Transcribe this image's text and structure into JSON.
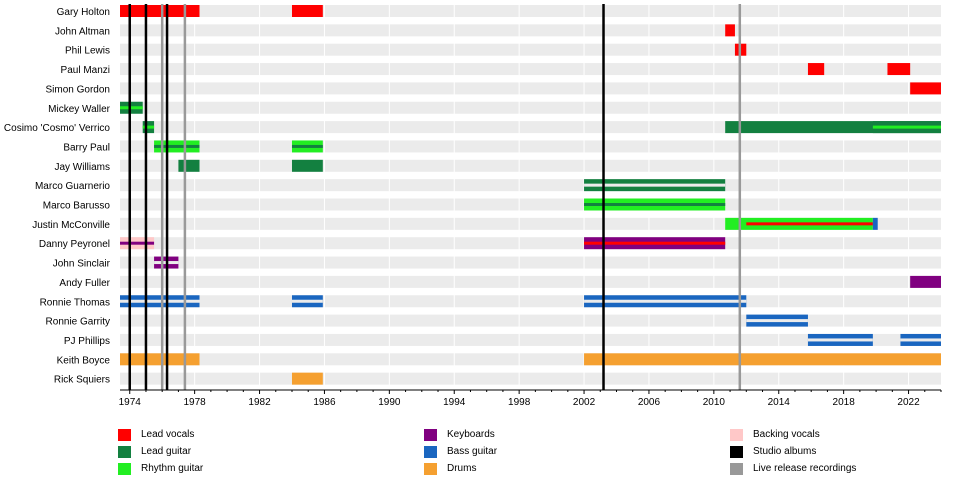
{
  "chart_data": {
    "type": "timeline",
    "title": "",
    "xlabel": "",
    "ylabel": "",
    "xlim": [
      1973.4,
      2024.0
    ],
    "x_ticks": [
      1974,
      1978,
      1982,
      1986,
      1990,
      1994,
      1998,
      2002,
      2006,
      2010,
      2014,
      2018,
      2022
    ],
    "grid": true,
    "members": [
      "Gary Holton",
      "John Altman",
      "Phil Lewis",
      "Paul Manzi",
      "Simon Gordon",
      "Mickey Waller",
      "Cosimo 'Cosmo' Verrico",
      "Barry Paul",
      "Jay Williams",
      "Marco Guarnerio",
      "Marco Barusso",
      "Justin McConville",
      "Danny Peyronel",
      "John Sinclair",
      "Andy Fuller",
      "Ronnie Thomas",
      "Ronnie Garrity",
      "PJ Phillips",
      "Keith Boyce",
      "Rick Squiers"
    ],
    "roles": {
      "lead_vocals": {
        "label": "Lead vocals",
        "color": "#ff0000"
      },
      "lead_guitar": {
        "label": "Lead guitar",
        "color": "#138040"
      },
      "rhythm_guitar": {
        "label": "Rhythm guitar",
        "color": "#22ee22"
      },
      "keyboards": {
        "label": "Keyboards",
        "color": "#800080"
      },
      "bass_guitar": {
        "label": "Bass guitar",
        "color": "#1a66c0"
      },
      "drums": {
        "label": "Drums",
        "color": "#f5a030"
      },
      "backing_vocals": {
        "label": "Backing vocals",
        "color": "#ffc8c8"
      }
    },
    "bars": [
      {
        "member": 0,
        "start": 1973.4,
        "end": 1978.3,
        "role": "lead_vocals"
      },
      {
        "member": 0,
        "start": 1984.0,
        "end": 1985.9,
        "role": "lead_vocals"
      },
      {
        "member": 1,
        "start": 2010.7,
        "end": 2011.3,
        "role": "lead_vocals"
      },
      {
        "member": 2,
        "start": 2011.3,
        "end": 2012.0,
        "role": "lead_vocals"
      },
      {
        "member": 3,
        "start": 2015.8,
        "end": 2016.8,
        "role": "lead_vocals"
      },
      {
        "member": 3,
        "start": 2020.7,
        "end": 2022.1,
        "role": "lead_vocals"
      },
      {
        "member": 4,
        "start": 2022.1,
        "end": 2024.0,
        "role": "lead_vocals"
      },
      {
        "member": 5,
        "start": 1973.4,
        "end": 1974.8,
        "role": "lead_guitar",
        "secondary": "rhythm_guitar"
      },
      {
        "member": 6,
        "start": 1974.8,
        "end": 1975.5,
        "role": "lead_guitar",
        "secondary": "rhythm_guitar"
      },
      {
        "member": 6,
        "start": 2010.7,
        "end": 2024.0,
        "role": "lead_guitar"
      },
      {
        "member": 6,
        "start": 2019.8,
        "end": 2024.0,
        "role": "lead_guitar",
        "secondary": "rhythm_guitar"
      },
      {
        "member": 7,
        "start": 1975.5,
        "end": 1978.3,
        "role": "rhythm_guitar",
        "secondary": "lead_guitar"
      },
      {
        "member": 7,
        "start": 1984.0,
        "end": 1985.9,
        "role": "rhythm_guitar",
        "secondary": "lead_guitar"
      },
      {
        "member": 8,
        "start": 1977.0,
        "end": 1978.3,
        "role": "lead_guitar"
      },
      {
        "member": 8,
        "start": 1984.0,
        "end": 1985.9,
        "role": "lead_guitar"
      },
      {
        "member": 9,
        "start": 2002.0,
        "end": 2010.7,
        "role": "lead_guitar",
        "split": true
      },
      {
        "member": 10,
        "start": 2002.0,
        "end": 2010.7,
        "role": "rhythm_guitar",
        "secondary": "lead_guitar"
      },
      {
        "member": 11,
        "start": 2010.7,
        "end": 2019.8,
        "role": "rhythm_guitar",
        "inner": "lead_vocals",
        "inner_start": 2012.0,
        "inner_end": 2019.8
      },
      {
        "member": 11,
        "start": 2019.8,
        "end": 2020.1,
        "role": "bass_guitar"
      },
      {
        "member": 12,
        "start": 1973.4,
        "end": 1975.5,
        "role": "backing_vocals",
        "secondary": "keyboards"
      },
      {
        "member": 12,
        "start": 2002.0,
        "end": 2010.7,
        "role": "keyboards",
        "secondary": "lead_vocals"
      },
      {
        "member": 13,
        "start": 1975.5,
        "end": 1977.0,
        "role": "keyboards",
        "split": true
      },
      {
        "member": 14,
        "start": 2022.1,
        "end": 2024.0,
        "role": "keyboards"
      },
      {
        "member": 15,
        "start": 1973.4,
        "end": 1978.3,
        "role": "bass_guitar",
        "split": true
      },
      {
        "member": 15,
        "start": 1984.0,
        "end": 1985.9,
        "role": "bass_guitar",
        "split": true
      },
      {
        "member": 15,
        "start": 2002.0,
        "end": 2012.0,
        "role": "bass_guitar",
        "split": true
      },
      {
        "member": 16,
        "start": 2012.0,
        "end": 2015.8,
        "role": "bass_guitar",
        "split": true
      },
      {
        "member": 17,
        "start": 2015.8,
        "end": 2019.8,
        "role": "bass_guitar",
        "split": true
      },
      {
        "member": 17,
        "start": 2021.5,
        "end": 2024.0,
        "role": "bass_guitar",
        "split": true
      },
      {
        "member": 18,
        "start": 1973.4,
        "end": 1978.3,
        "role": "drums"
      },
      {
        "member": 18,
        "start": 2002.0,
        "end": 2024.0,
        "role": "drums"
      },
      {
        "member": 19,
        "start": 1984.0,
        "end": 1985.9,
        "role": "drums"
      }
    ],
    "studio_albums": [
      1974.0,
      1975.0,
      1976.3,
      2003.2
    ],
    "live_recordings": [
      1976.0,
      1977.4,
      2011.6
    ],
    "legend": [
      [
        {
          "label": "Lead vocals",
          "color": "#ff0000"
        },
        {
          "label": "Lead guitar",
          "color": "#138040"
        },
        {
          "label": "Rhythm guitar",
          "color": "#22ee22"
        }
      ],
      [
        {
          "label": "Keyboards",
          "color": "#800080"
        },
        {
          "label": "Bass guitar",
          "color": "#1a66c0"
        },
        {
          "label": "Drums",
          "color": "#f5a030"
        }
      ],
      [
        {
          "label": "Backing vocals",
          "color": "#ffc8c8"
        },
        {
          "label": "Studio albums",
          "color": "#000000"
        },
        {
          "label": "Live release recordings",
          "color": "#999999"
        }
      ]
    ],
    "legend_placement": "bottom"
  }
}
